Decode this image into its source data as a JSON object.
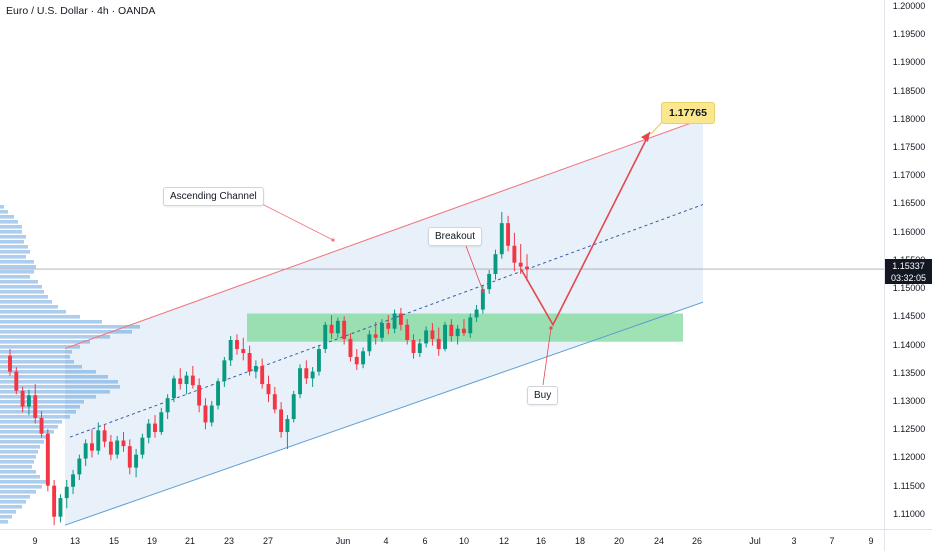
{
  "header": {
    "symbol_title": "Euro / U.S. Dollar · 4h · OANDA"
  },
  "price_axis": {
    "ticks": [
      "1.20000",
      "1.19500",
      "1.19000",
      "1.18500",
      "1.18000",
      "1.17500",
      "1.17000",
      "1.16500",
      "1.16000",
      "1.15500",
      "1.15000",
      "1.14500",
      "1.14000",
      "1.13500",
      "1.13000",
      "1.12500",
      "1.12000",
      "1.11500",
      "1.11000"
    ],
    "current_price": "1.15337",
    "countdown": "03:32:05"
  },
  "time_axis": {
    "ticks": [
      "9",
      "13",
      "15",
      "19",
      "21",
      "23",
      "27",
      "Jun",
      "4",
      "6",
      "10",
      "12",
      "16",
      "18",
      "20",
      "24",
      "26",
      "Jul",
      "3",
      "7",
      "9"
    ]
  },
  "annotations": {
    "ascending_channel": "Ascending Channel",
    "breakout": "Breakout",
    "buy": "Buy",
    "target": "1.17765"
  },
  "colors": {
    "up": "#089981",
    "down": "#f23645",
    "channel_upper": "#f0757d",
    "channel_lower": "#5b9bd5",
    "channel_fill": "#d6e6f5",
    "zone": "#7fd89a",
    "projection": "#e5474f",
    "volume_profile": "#4a90d9",
    "target_bg": "#fbe88e"
  },
  "chart_data": {
    "type": "candlestick",
    "title": "Euro / U.S. Dollar · 4h · OANDA",
    "ylim": [
      1.1075,
      1.2005
    ],
    "ohlc": [
      [
        1.138,
        1.1392,
        1.1345,
        1.1352
      ],
      [
        1.1352,
        1.136,
        1.1312,
        1.1318
      ],
      [
        1.1318,
        1.1325,
        1.128,
        1.129
      ],
      [
        1.129,
        1.132,
        1.1275,
        1.131
      ],
      [
        1.131,
        1.133,
        1.126,
        1.127
      ],
      [
        1.127,
        1.1282,
        1.1235,
        1.1242
      ],
      [
        1.1242,
        1.125,
        1.114,
        1.115
      ],
      [
        1.115,
        1.116,
        1.108,
        1.1095
      ],
      [
        1.1095,
        1.1135,
        1.1085,
        1.1128
      ],
      [
        1.1128,
        1.116,
        1.111,
        1.1148
      ],
      [
        1.1148,
        1.1178,
        1.1135,
        1.117
      ],
      [
        1.117,
        1.1205,
        1.116,
        1.1198
      ],
      [
        1.1198,
        1.1232,
        1.1185,
        1.1225
      ],
      [
        1.1225,
        1.125,
        1.12,
        1.1212
      ],
      [
        1.1212,
        1.1262,
        1.1205,
        1.1248
      ],
      [
        1.1248,
        1.1258,
        1.1218,
        1.1228
      ],
      [
        1.1228,
        1.124,
        1.1195,
        1.1205
      ],
      [
        1.1205,
        1.1238,
        1.1198,
        1.123
      ],
      [
        1.123,
        1.1245,
        1.121,
        1.122
      ],
      [
        1.122,
        1.1232,
        1.117,
        1.1182
      ],
      [
        1.1182,
        1.1215,
        1.1165,
        1.1205
      ],
      [
        1.1205,
        1.1242,
        1.1198,
        1.1235
      ],
      [
        1.1235,
        1.1268,
        1.1225,
        1.126
      ],
      [
        1.126,
        1.1275,
        1.1235,
        1.1245
      ],
      [
        1.1245,
        1.1288,
        1.124,
        1.128
      ],
      [
        1.128,
        1.1312,
        1.1268,
        1.1305
      ],
      [
        1.1305,
        1.1345,
        1.1298,
        1.134
      ],
      [
        1.134,
        1.1358,
        1.132,
        1.133
      ],
      [
        1.133,
        1.1352,
        1.1312,
        1.1345
      ],
      [
        1.1345,
        1.1362,
        1.1322,
        1.1328
      ],
      [
        1.1328,
        1.134,
        1.128,
        1.1292
      ],
      [
        1.1292,
        1.1305,
        1.125,
        1.1262
      ],
      [
        1.1262,
        1.13,
        1.1255,
        1.1292
      ],
      [
        1.1292,
        1.134,
        1.1285,
        1.1335
      ],
      [
        1.1335,
        1.1378,
        1.1325,
        1.1372
      ],
      [
        1.1372,
        1.1415,
        1.1362,
        1.1408
      ],
      [
        1.1408,
        1.1418,
        1.1382,
        1.1392
      ],
      [
        1.1392,
        1.1412,
        1.1372,
        1.1385
      ],
      [
        1.1385,
        1.1398,
        1.1345,
        1.1352
      ],
      [
        1.1352,
        1.1372,
        1.134,
        1.1362
      ],
      [
        1.1362,
        1.1375,
        1.1322,
        1.133
      ],
      [
        1.133,
        1.1345,
        1.1298,
        1.1312
      ],
      [
        1.1312,
        1.1325,
        1.1278,
        1.1285
      ],
      [
        1.1285,
        1.1298,
        1.1235,
        1.1245
      ],
      [
        1.1245,
        1.1275,
        1.1215,
        1.1268
      ],
      [
        1.1268,
        1.1318,
        1.1262,
        1.1312
      ],
      [
        1.1312,
        1.1365,
        1.1305,
        1.1358
      ],
      [
        1.1358,
        1.1372,
        1.133,
        1.134
      ],
      [
        1.134,
        1.136,
        1.1325,
        1.1352
      ],
      [
        1.1352,
        1.1398,
        1.1345,
        1.1392
      ],
      [
        1.1392,
        1.144,
        1.1385,
        1.1435
      ],
      [
        1.1435,
        1.1452,
        1.141,
        1.142
      ],
      [
        1.142,
        1.1448,
        1.1412,
        1.1442
      ],
      [
        1.1442,
        1.145,
        1.14,
        1.141
      ],
      [
        1.141,
        1.142,
        1.137,
        1.1378
      ],
      [
        1.1378,
        1.1392,
        1.1355,
        1.1365
      ],
      [
        1.1365,
        1.1395,
        1.1358,
        1.1388
      ],
      [
        1.1388,
        1.1425,
        1.138,
        1.1418
      ],
      [
        1.1418,
        1.144,
        1.14,
        1.1412
      ],
      [
        1.1412,
        1.1445,
        1.1405,
        1.1438
      ],
      [
        1.1438,
        1.1452,
        1.1418,
        1.1428
      ],
      [
        1.1428,
        1.1462,
        1.142,
        1.1455
      ],
      [
        1.1455,
        1.1465,
        1.1425,
        1.1435
      ],
      [
        1.1435,
        1.1445,
        1.14,
        1.1408
      ],
      [
        1.1408,
        1.1418,
        1.1375,
        1.1385
      ],
      [
        1.1385,
        1.141,
        1.1378,
        1.1402
      ],
      [
        1.1402,
        1.1432,
        1.1395,
        1.1425
      ],
      [
        1.1425,
        1.1438,
        1.1398,
        1.141
      ],
      [
        1.141,
        1.143,
        1.138,
        1.1392
      ],
      [
        1.1392,
        1.144,
        1.1388,
        1.1435
      ],
      [
        1.1435,
        1.1445,
        1.1405,
        1.1415
      ],
      [
        1.1415,
        1.1435,
        1.14,
        1.1428
      ],
      [
        1.1428,
        1.1445,
        1.1415,
        1.142
      ],
      [
        1.142,
        1.1455,
        1.1412,
        1.1448
      ],
      [
        1.1448,
        1.147,
        1.144,
        1.1462
      ],
      [
        1.1462,
        1.1505,
        1.1455,
        1.1498
      ],
      [
        1.1498,
        1.1532,
        1.149,
        1.1525
      ],
      [
        1.1525,
        1.1568,
        1.1515,
        1.156
      ],
      [
        1.156,
        1.1635,
        1.1552,
        1.1615
      ],
      [
        1.1615,
        1.1628,
        1.1565,
        1.1575
      ],
      [
        1.1575,
        1.1598,
        1.153,
        1.1545
      ],
      [
        1.1545,
        1.1578,
        1.1525,
        1.1538
      ],
      [
        1.1538,
        1.156,
        1.1512,
        1.1534
      ]
    ],
    "channel": {
      "upper": {
        "x": [
          "13",
          "26"
        ],
        "y": [
          1.1393,
          1.18
        ]
      },
      "lower": {
        "x": [
          "13",
          "26"
        ],
        "y": [
          1.108,
          1.1475
        ]
      },
      "midline": {
        "x": [
          "13",
          "26"
        ],
        "y": [
          1.1236,
          1.1648
        ]
      }
    },
    "support_zone": {
      "from": 1.1405,
      "to": 1.1455,
      "x": [
        "27",
        "24"
      ]
    },
    "projection_path": {
      "y": [
        1.15337,
        1.1435,
        1.17765
      ]
    },
    "target_price": 1.17765
  }
}
